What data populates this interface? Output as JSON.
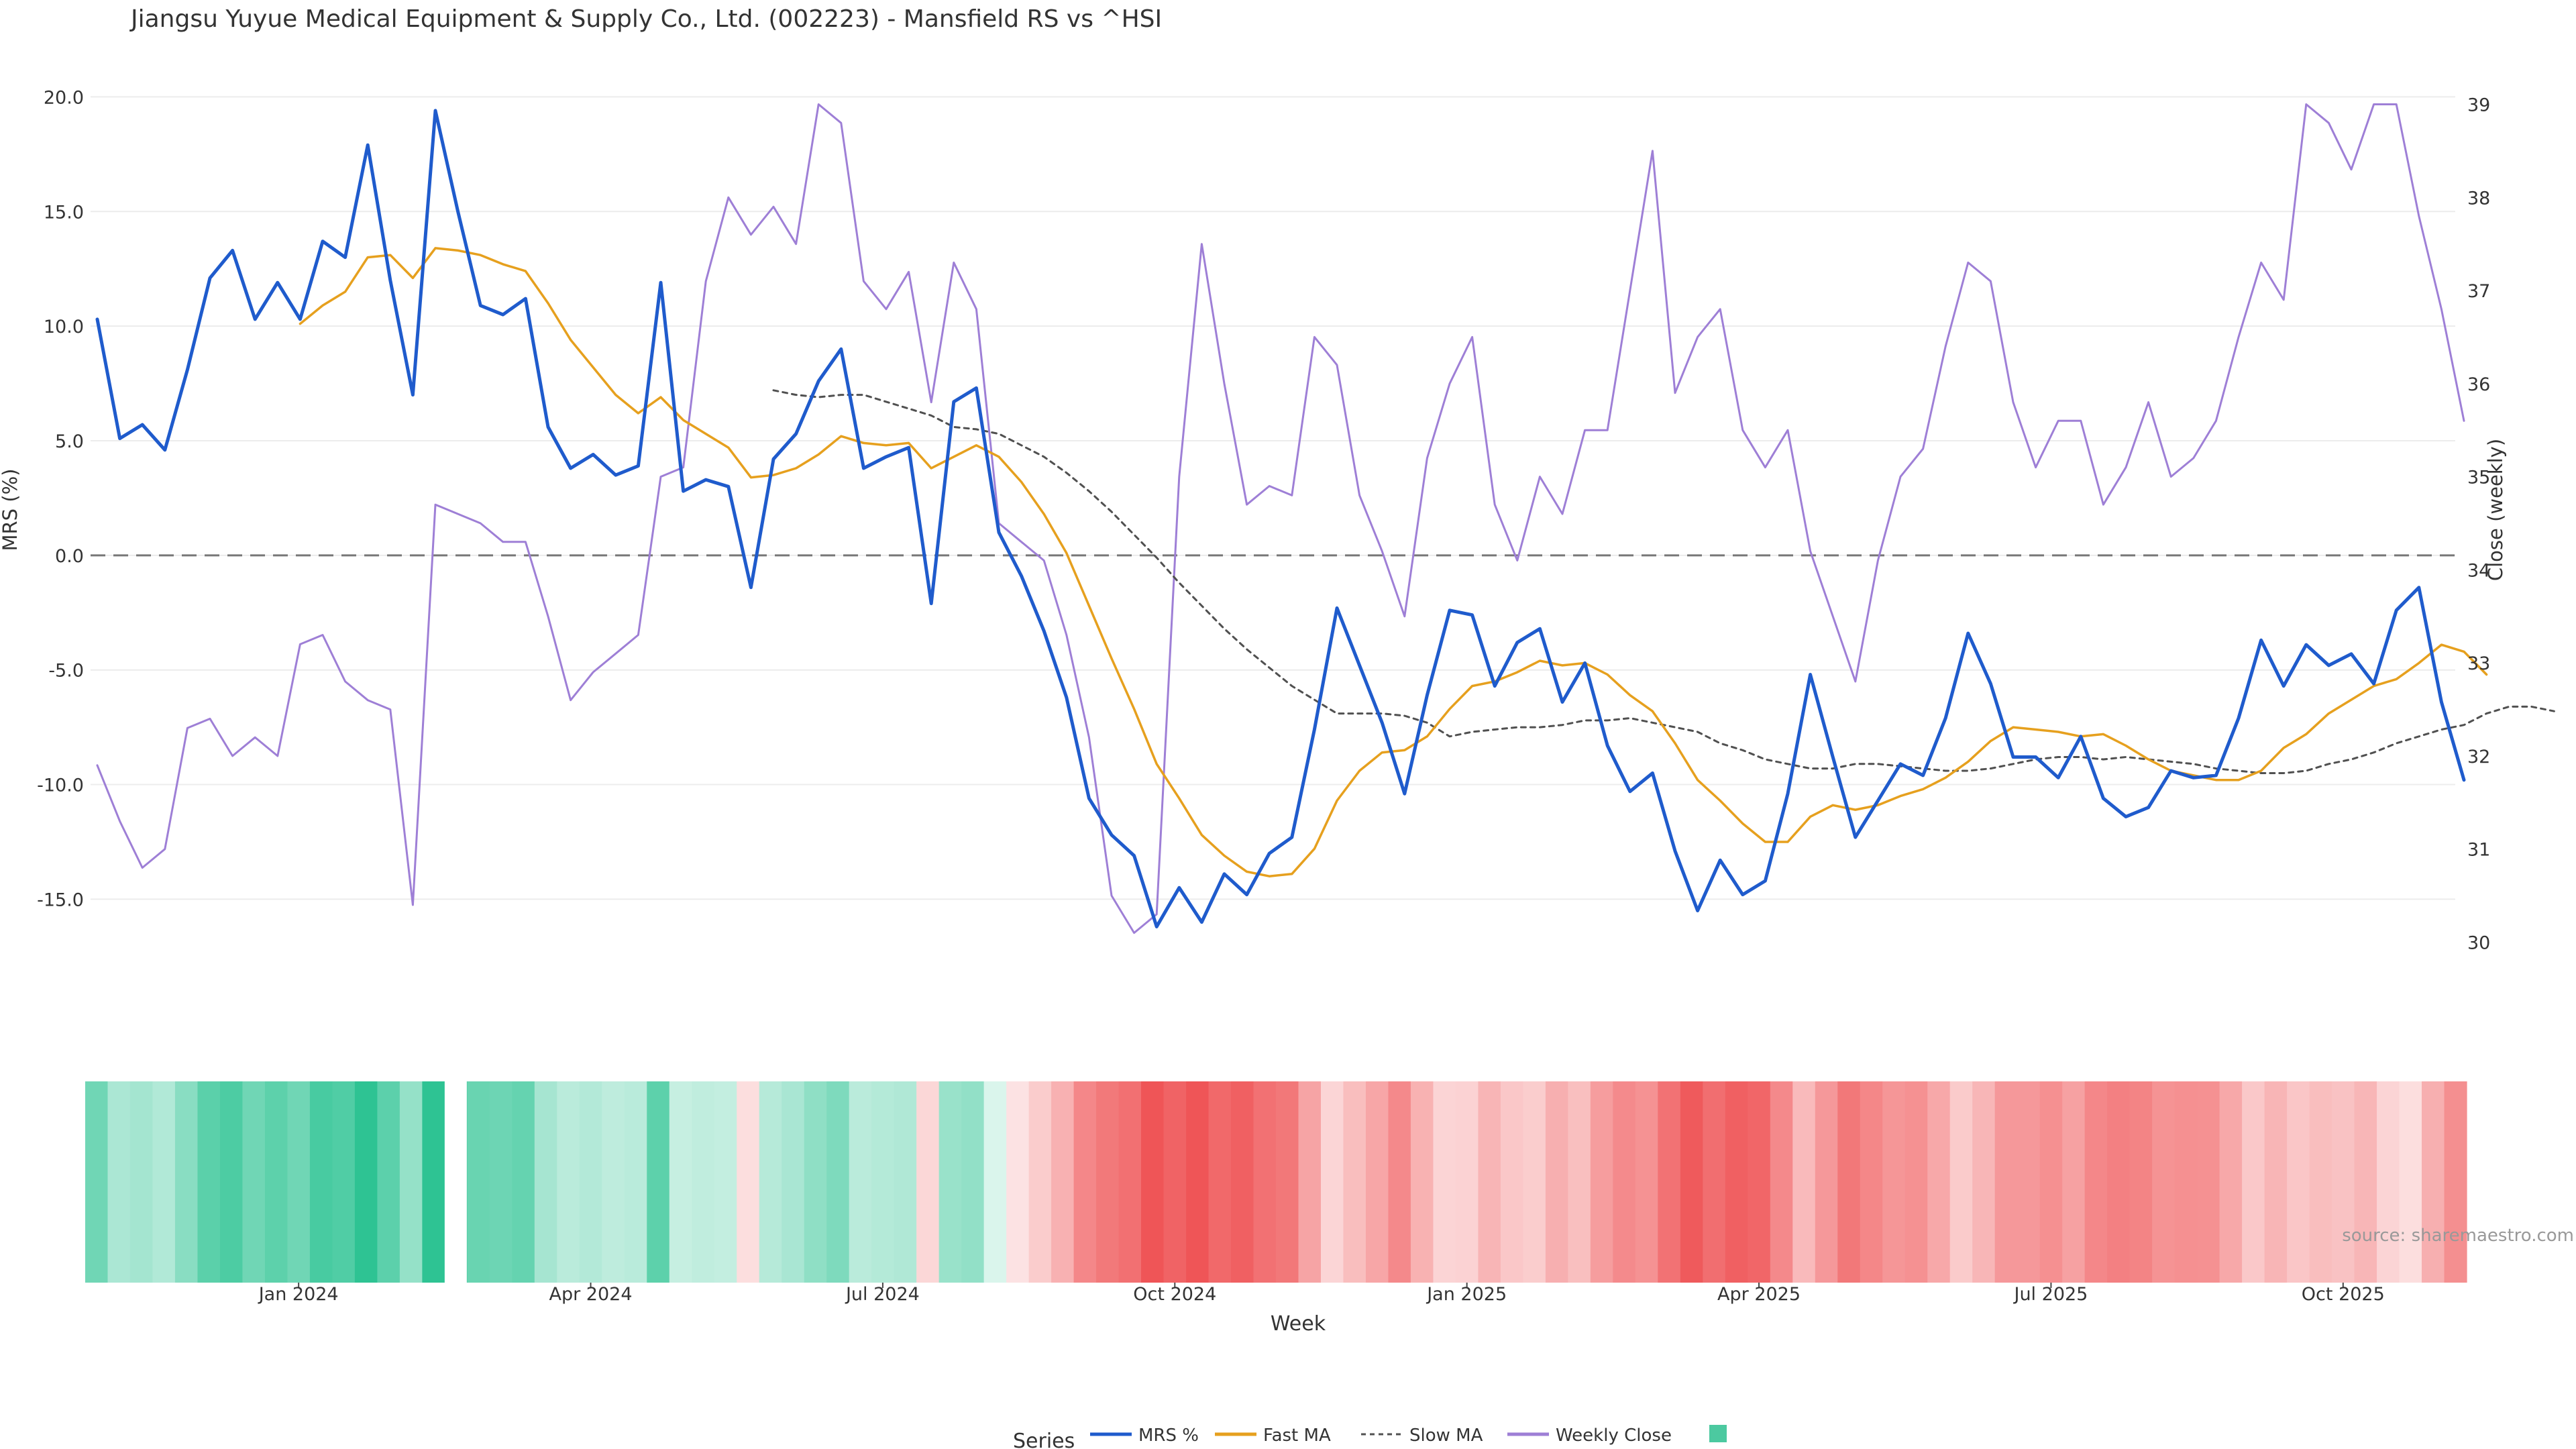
{
  "chart_data": {
    "type": "line",
    "title": "Jiangsu Yuyue Medical Equipment & Supply Co., Ltd. (002223) - Mansfield RS vs ^HSI",
    "ylabel": "MRS (%)",
    "y2label": "Close (weekly)",
    "xlabel": "Week",
    "ylim": [
      -18.5,
      21.3
    ],
    "y2lim": [
      29.6,
      39.4
    ],
    "yticks": [
      "20.0",
      "15.0",
      "10.0",
      "5.0",
      "0.0",
      "-5.0",
      "-10.0",
      "-15.0"
    ],
    "y2ticks": [
      "39",
      "38",
      "37",
      "36",
      "35",
      "34",
      "33",
      "32",
      "31",
      "30"
    ],
    "xticks": [
      "Jan 2024",
      "Apr 2024",
      "Jul 2024",
      "Oct 2024",
      "Jan 2025",
      "Apr 2025",
      "Jul 2025",
      "Oct 2025"
    ],
    "xtick_positions": [
      9.5,
      22.5,
      35.5,
      48.5,
      61.5,
      74.5,
      87.5,
      100.5
    ],
    "zero_line": 0,
    "grid": true,
    "legend_position": "bottom-center",
    "series": [
      {
        "name": "MRS %",
        "axis": "left",
        "color": "#1f5bcc",
        "values": [
          10.3,
          5.1,
          5.7,
          4.6,
          8.1,
          12.1,
          13.3,
          10.3,
          11.9,
          10.3,
          13.7,
          13.0,
          17.9,
          12.0,
          7.0,
          19.4,
          15.0,
          10.9,
          10.5,
          11.2,
          5.6,
          3.8,
          4.4,
          3.5,
          3.9,
          11.9,
          2.8,
          3.3,
          3.0,
          -1.4,
          4.2,
          5.3,
          7.6,
          9.0,
          3.8,
          4.3,
          4.7,
          -2.1,
          6.7,
          7.3,
          1.0,
          -0.9,
          -3.3,
          -6.2,
          -10.6,
          -12.2,
          -13.1,
          -16.2,
          -14.5,
          -16.0,
          -13.9,
          -14.8,
          -13.0,
          -12.3,
          -7.6,
          -2.3,
          -4.8,
          -7.3,
          -10.4,
          -6.1,
          -2.4,
          -2.6,
          -5.7,
          -3.8,
          -3.2,
          -6.4,
          -4.7,
          -8.3,
          -10.3,
          -9.5,
          -12.9,
          -15.5,
          -13.3,
          -14.8,
          -14.2,
          -10.4,
          -5.2,
          -8.8,
          -12.3,
          -10.7,
          -9.1,
          -9.6,
          -7.1,
          -3.4,
          -5.6,
          -8.8,
          -8.8,
          -9.7,
          -7.9,
          -10.6,
          -11.4,
          -11.0,
          -9.4,
          -9.7,
          -9.6,
          -7.1,
          -3.7,
          -5.7,
          -3.9,
          -4.8,
          -4.3,
          -5.6,
          -2.4,
          -1.4,
          -6.4,
          -9.8
        ]
      },
      {
        "name": "Fast MA",
        "axis": "left",
        "color": "#e6a01e",
        "start_index": 9,
        "values": [
          10.1,
          10.9,
          11.5,
          13.0,
          13.1,
          12.1,
          13.4,
          13.3,
          13.1,
          12.7,
          12.4,
          11.0,
          9.4,
          8.2,
          7.0,
          6.2,
          6.9,
          5.9,
          5.3,
          4.7,
          3.4,
          3.5,
          3.8,
          4.4,
          5.2,
          4.9,
          4.8,
          4.9,
          3.8,
          4.3,
          4.8,
          4.3,
          3.2,
          1.8,
          0.1,
          -2.2,
          -4.5,
          -6.7,
          -9.1,
          -10.6,
          -12.2,
          -13.1,
          -13.8,
          -14.0,
          -13.9,
          -12.8,
          -10.7,
          -9.4,
          -8.6,
          -8.5,
          -7.9,
          -6.7,
          -5.7,
          -5.5,
          -5.1,
          -4.6,
          -4.8,
          -4.7,
          -5.2,
          -6.1,
          -6.8,
          -8.2,
          -9.8,
          -10.7,
          -11.7,
          -12.5,
          -12.5,
          -11.4,
          -10.9,
          -11.1,
          -10.9,
          -10.5,
          -10.2,
          -9.7,
          -9.0,
          -8.1,
          -7.5,
          -7.6,
          -7.7,
          -7.9,
          -7.8,
          -8.3,
          -8.9,
          -9.4,
          -9.6,
          -9.8,
          -9.8,
          -9.4,
          -8.4,
          -7.8,
          -6.9,
          -6.3,
          -5.7,
          -5.4,
          -4.7,
          -3.9,
          -4.2,
          -5.2
        ]
      },
      {
        "name": "Slow MA",
        "axis": "left",
        "color": "#505050",
        "dash": true,
        "start_index": 30,
        "values": [
          7.2,
          7.0,
          6.9,
          7.0,
          7.0,
          6.7,
          6.4,
          6.1,
          5.6,
          5.5,
          5.3,
          4.8,
          4.3,
          3.6,
          2.8,
          1.9,
          0.9,
          -0.1,
          -1.2,
          -2.2,
          -3.2,
          -4.1,
          -4.9,
          -5.7,
          -6.3,
          -6.9,
          -6.9,
          -6.9,
          -7.0,
          -7.3,
          -7.9,
          -7.7,
          -7.6,
          -7.5,
          -7.5,
          -7.4,
          -7.2,
          -7.2,
          -7.1,
          -7.3,
          -7.5,
          -7.7,
          -8.2,
          -8.5,
          -8.9,
          -9.1,
          -9.3,
          -9.3,
          -9.1,
          -9.1,
          -9.2,
          -9.3,
          -9.4,
          -9.4,
          -9.3,
          -9.1,
          -8.9,
          -8.8,
          -8.8,
          -8.9,
          -8.8,
          -8.9,
          -9.0,
          -9.1,
          -9.3,
          -9.4,
          -9.5,
          -9.5,
          -9.4,
          -9.1,
          -8.9,
          -8.6,
          -8.2,
          -7.9,
          -7.6,
          -7.4,
          -6.9,
          -6.6,
          -6.6,
          -6.8
        ]
      },
      {
        "name": "Weekly Close",
        "axis": "right",
        "color": "#9e7fd6",
        "values": [
          31.9,
          31.3,
          30.8,
          31.0,
          32.3,
          32.4,
          32.0,
          32.2,
          32.0,
          33.2,
          33.3,
          32.8,
          32.6,
          32.5,
          30.4,
          34.7,
          34.6,
          34.5,
          34.3,
          34.3,
          33.5,
          32.6,
          32.9,
          33.1,
          33.3,
          35.0,
          35.1,
          37.1,
          38.0,
          37.6,
          37.9,
          37.5,
          39.0,
          38.8,
          37.1,
          36.8,
          37.2,
          35.8,
          37.3,
          36.8,
          34.5,
          34.3,
          34.1,
          33.3,
          32.2,
          30.5,
          30.1,
          30.3,
          35.0,
          37.5,
          36.0,
          34.7,
          34.9,
          34.8,
          36.5,
          36.2,
          34.8,
          34.2,
          33.5,
          35.2,
          36.0,
          36.5,
          34.7,
          34.1,
          35.0,
          34.6,
          35.5,
          35.5,
          37.0,
          38.5,
          35.9,
          36.5,
          36.8,
          35.5,
          35.1,
          35.5,
          34.2,
          33.5,
          32.8,
          34.1,
          35.0,
          35.3,
          36.4,
          37.3,
          37.1,
          35.8,
          35.1,
          35.6,
          35.6,
          34.7,
          35.1,
          35.8,
          35.0,
          35.2,
          35.6,
          36.5,
          37.3,
          36.9,
          39.0,
          38.8,
          38.3,
          39.0,
          39.0,
          37.8,
          36.8,
          35.6
        ]
      }
    ],
    "heatmap_strip": {
      "description": "weekly MRS color strip",
      "positive_color": "#2ec393",
      "negative_color": "#ef5557",
      "gap_after_index": 15,
      "values_from_series": "MRS %"
    }
  },
  "source_text": "source: sharemaestro.com",
  "legend": {
    "title": "Series",
    "items": [
      {
        "label": "MRS %",
        "style": "line",
        "color": "#1f5bcc"
      },
      {
        "label": "Fast MA",
        "style": "line",
        "color": "#e6a01e"
      },
      {
        "label": "Slow MA",
        "style": "dash",
        "color": "#505050"
      },
      {
        "label": "Weekly Close",
        "style": "line",
        "color": "#9e7fd6"
      },
      {
        "label": "",
        "style": "square",
        "color": "#4cc9a0"
      }
    ]
  }
}
